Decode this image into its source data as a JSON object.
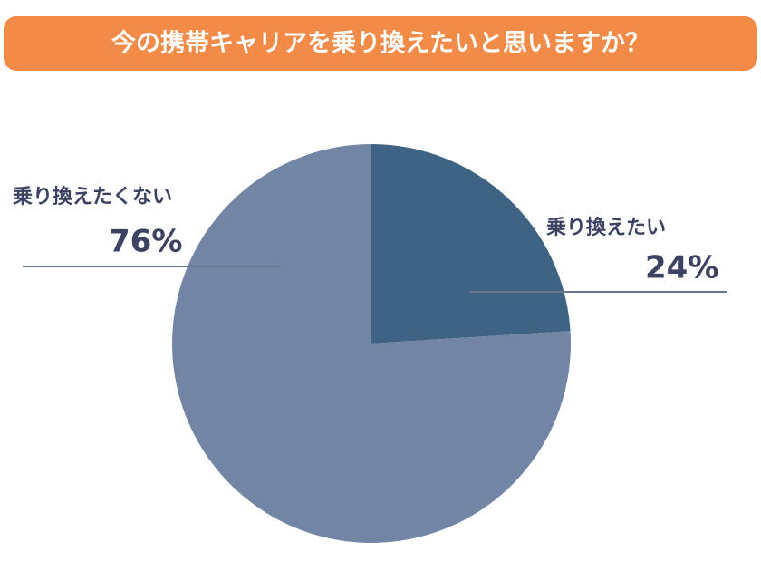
{
  "chart_data": {
    "type": "pie",
    "title": "今の携帯キャリアを乗り換えたいと思いますか？",
    "categories": [
      "乗り換えたい",
      "乗り換えたくない"
    ],
    "values": [
      24,
      76
    ],
    "value_labels": [
      "24%",
      "76%"
    ],
    "colors": [
      "#3f6483",
      "#7285a5"
    ]
  }
}
